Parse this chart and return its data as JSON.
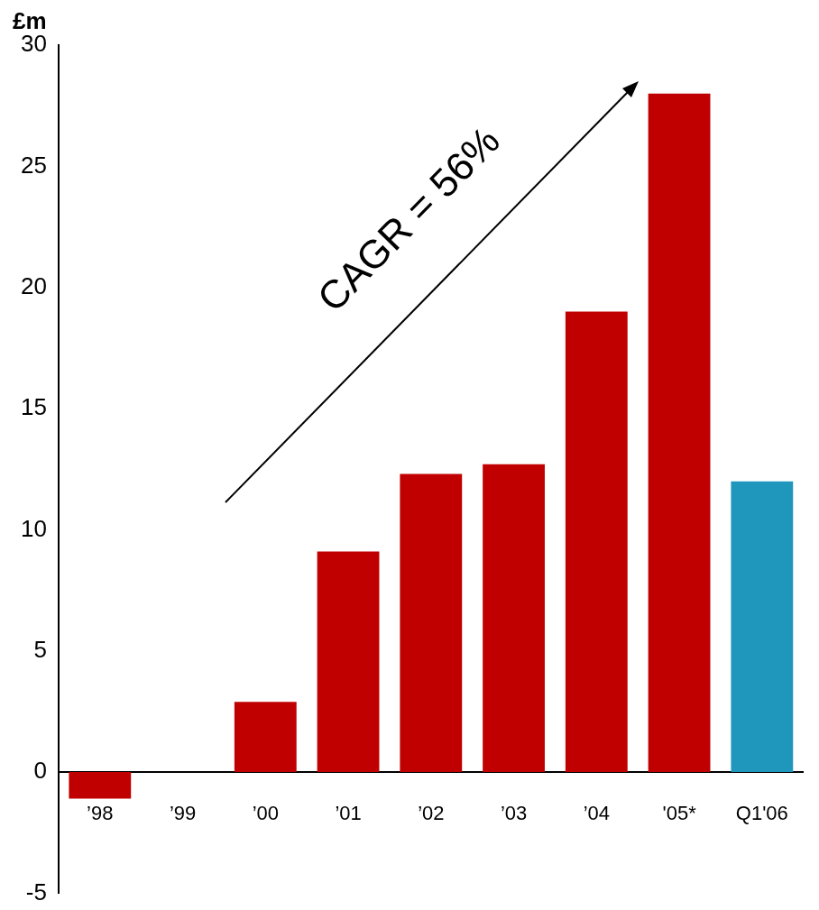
{
  "chart_data": {
    "type": "bar",
    "ylabel": "£m",
    "categories": [
      "’98",
      "’99",
      "’00",
      "’01",
      "’02",
      "’03",
      "’04",
      "'05*",
      "Q1'06"
    ],
    "values": [
      -1.1,
      0,
      2.9,
      9.1,
      12.3,
      12.7,
      19,
      28,
      12
    ],
    "colors": [
      "#c00000",
      "#c00000",
      "#c00000",
      "#c00000",
      "#c00000",
      "#c00000",
      "#c00000",
      "#c00000",
      "#1f97bd"
    ],
    "ylim": [
      -5,
      30
    ],
    "yticks": [
      -5,
      0,
      5,
      10,
      15,
      20,
      25,
      30
    ],
    "grid": false,
    "legend": false,
    "annotations": [
      "CAGR = 56%"
    ]
  }
}
